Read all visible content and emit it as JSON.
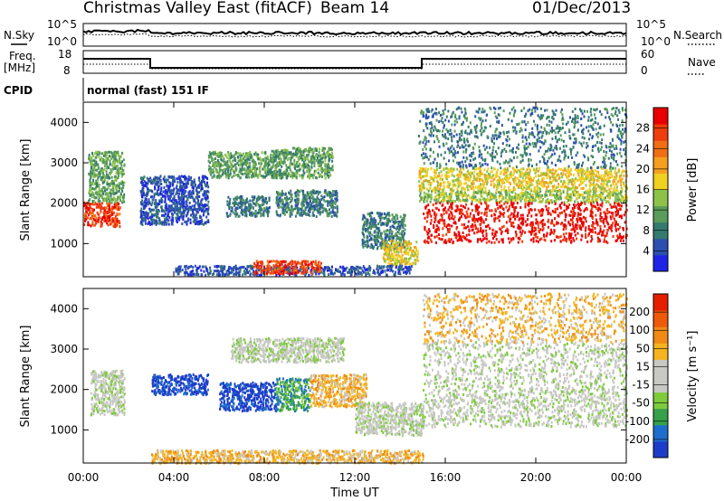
{
  "header": {
    "station": "Christmas Valley East (fitACF)",
    "beam": "Beam 14",
    "date": "01/Dec/2013"
  },
  "strip_labels": {
    "nsky": "N.Sky",
    "nsky_ticks": [
      "10^5",
      "10^0"
    ],
    "nsearch": "N.Search",
    "nsearch_ticks": [
      "10^5",
      "10^0"
    ],
    "freq": "Freq.",
    "freq_unit": "[MHz]",
    "freq_ticks": [
      "18",
      "8"
    ],
    "nave": "Nave",
    "nave_ticks": [
      "60",
      "0"
    ],
    "cpid": "CPID",
    "cpid_value": "normal (fast) 151 IF"
  },
  "colors": {
    "power_scale": [
      "#1e23e6",
      "#2c4fb0",
      "#347a6e",
      "#5a9c5a",
      "#8cc24a",
      "#f0d020",
      "#f5a020",
      "#f06e14",
      "#ee3c0c",
      "#e80000"
    ],
    "velocity_scale": [
      "#1c3cc8",
      "#1e6ccc",
      "#36a04a",
      "#7ecb3c",
      "#c8c8c4",
      "#c8c8c4",
      "#f5b41e",
      "#f08a14",
      "#ee5a0a",
      "#e61e00"
    ]
  },
  "chart_data": [
    {
      "type": "heatmap",
      "panel": "power",
      "ylabel": "Slant Range [km]",
      "colorbar_label": "Power [dB]",
      "colorbar_ticks": [
        "28",
        "24",
        "20",
        "16",
        "12",
        "8",
        "4"
      ],
      "yticks": [
        "4000",
        "3000",
        "2000",
        "1000"
      ],
      "xlim": [
        0,
        24
      ],
      "ylim": [
        180,
        4500
      ],
      "regions": [
        {
          "t0": 0.0,
          "t1": 1.6,
          "r0": 1450,
          "r1": 2050,
          "level": 8
        },
        {
          "t0": 0.2,
          "t1": 1.8,
          "r0": 2050,
          "r1": 3300,
          "level": 3
        },
        {
          "t0": 2.5,
          "t1": 5.5,
          "r0": 1500,
          "r1": 2700,
          "level": 1
        },
        {
          "t0": 5.5,
          "t1": 8.5,
          "r0": 2650,
          "r1": 3300,
          "level": 3
        },
        {
          "t0": 6.3,
          "t1": 8.2,
          "r0": 1700,
          "r1": 2200,
          "level": 2
        },
        {
          "t0": 8.5,
          "t1": 11.2,
          "r0": 1700,
          "r1": 2350,
          "level": 2
        },
        {
          "t0": 8.3,
          "t1": 11.0,
          "r0": 2650,
          "r1": 3400,
          "level": 3
        },
        {
          "t0": 12.3,
          "t1": 14.2,
          "r0": 900,
          "r1": 1800,
          "level": 2
        },
        {
          "t0": 13.2,
          "t1": 14.8,
          "r0": 500,
          "r1": 1100,
          "level": 5
        },
        {
          "t0": 4.0,
          "t1": 14.5,
          "r0": 250,
          "r1": 480,
          "level": 1
        },
        {
          "t0": 7.5,
          "t1": 10.5,
          "r0": 280,
          "r1": 600,
          "level": 8
        },
        {
          "t0": 14.8,
          "t1": 24.0,
          "r0": 2050,
          "r1": 2350,
          "level": 4
        },
        {
          "t0": 14.8,
          "t1": 24.0,
          "r0": 2350,
          "r1": 2900,
          "level": 5
        },
        {
          "t0": 15.0,
          "t1": 24.0,
          "r0": 1050,
          "r1": 2050,
          "level": 9
        },
        {
          "t0": 14.8,
          "t1": 24.0,
          "r0": 2900,
          "r1": 4400,
          "level": 2
        }
      ]
    },
    {
      "type": "heatmap",
      "panel": "velocity",
      "ylabel": "Slant Range [km]",
      "colorbar_label": "Velocity [m s⁻¹]",
      "colorbar_ticks": [
        "200",
        "100",
        "50",
        "15",
        "-15",
        "-50",
        "-100",
        "-200"
      ],
      "yticks": [
        "4000",
        "3000",
        "2000",
        "1000"
      ],
      "xticks": [
        "00:00",
        "04:00",
        "08:00",
        "12:00",
        "16:00",
        "20:00",
        "00:00"
      ],
      "xlabel": "Time UT",
      "xlim": [
        0,
        24
      ],
      "ylim": [
        180,
        4500
      ],
      "regions": [
        {
          "t0": 0.3,
          "t1": 1.8,
          "r0": 1400,
          "r1": 2500,
          "level": 4
        },
        {
          "t0": 3.0,
          "t1": 5.5,
          "r0": 1900,
          "r1": 2400,
          "level": 0
        },
        {
          "t0": 6.0,
          "t1": 8.5,
          "r0": 1500,
          "r1": 2200,
          "level": 0
        },
        {
          "t0": 8.5,
          "t1": 10.0,
          "r0": 1500,
          "r1": 2300,
          "level": 2
        },
        {
          "t0": 10.0,
          "t1": 12.5,
          "r0": 1600,
          "r1": 2400,
          "level": 6
        },
        {
          "t0": 6.5,
          "t1": 11.5,
          "r0": 2700,
          "r1": 3300,
          "level": 4
        },
        {
          "t0": 12.0,
          "t1": 15.0,
          "r0": 900,
          "r1": 1700,
          "level": 4
        },
        {
          "t0": 3.0,
          "t1": 15.0,
          "r0": 200,
          "r1": 520,
          "level": 6
        },
        {
          "t0": 15.0,
          "t1": 24.0,
          "r0": 1100,
          "r1": 2000,
          "level": 4
        },
        {
          "t0": 15.0,
          "t1": 24.0,
          "r0": 2000,
          "r1": 3200,
          "level": 4
        },
        {
          "t0": 15.0,
          "t1": 24.0,
          "r0": 3200,
          "r1": 4400,
          "level": 6
        }
      ]
    }
  ]
}
